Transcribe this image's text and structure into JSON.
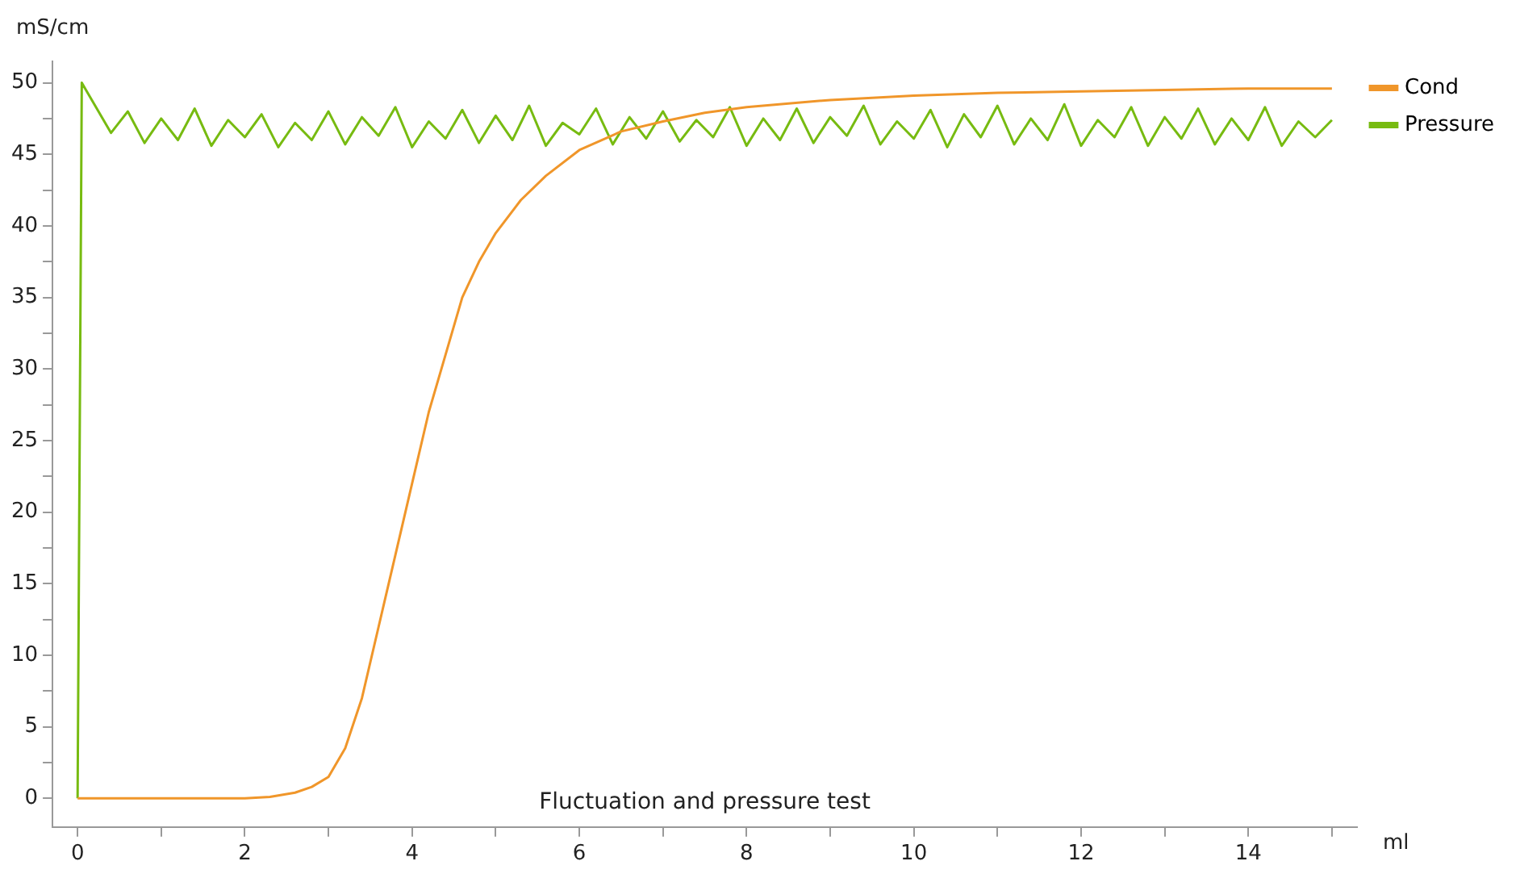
{
  "chart_data": {
    "type": "line",
    "xlabel": "ml",
    "ylabel": "mS/cm",
    "annotations": [
      "Fluctuation and pressure test"
    ],
    "xlim": [
      -0.3,
      15.3
    ],
    "ylim": [
      -2,
      51.5
    ],
    "xticks": [
      0,
      {
        "value": 1,
        "label": null
      },
      2,
      {
        "value": 3,
        "label": null
      },
      4,
      {
        "value": 5,
        "label": null
      },
      6,
      {
        "value": 7,
        "label": null
      },
      8,
      {
        "value": 9,
        "label": null
      },
      10,
      {
        "value": 11,
        "label": null
      },
      12,
      {
        "value": 13,
        "label": null
      },
      14,
      {
        "value": 15,
        "label": null
      }
    ],
    "yticks": [
      0,
      {
        "value": 2.5,
        "label": null
      },
      5,
      {
        "value": 7.5,
        "label": null
      },
      10,
      {
        "value": 12.5,
        "label": null
      },
      15,
      {
        "value": 17.5,
        "label": null
      },
      20,
      {
        "value": 22.5,
        "label": null
      },
      25,
      {
        "value": 27.5,
        "label": null
      },
      30,
      {
        "value": 32.5,
        "label": null
      },
      35,
      {
        "value": 37.5,
        "label": null
      },
      40,
      {
        "value": 42.5,
        "label": null
      },
      45,
      {
        "value": 47.5,
        "label": null
      },
      50
    ],
    "grid": false,
    "legend": "top right",
    "marker": "none",
    "line_style": "solid",
    "series": [
      {
        "name": "Cond",
        "color": "#f0962a",
        "x": [
          0,
          1,
          2,
          2.3,
          2.6,
          2.8,
          3.0,
          3.2,
          3.4,
          3.6,
          3.8,
          4.0,
          4.2,
          4.4,
          4.6,
          4.8,
          5.0,
          5.3,
          5.6,
          6.0,
          6.5,
          7.0,
          7.5,
          8.0,
          9.0,
          10.0,
          11.0,
          12.0,
          13.0,
          14.0,
          15.0
        ],
        "values": [
          0,
          0,
          0,
          0.1,
          0.4,
          0.8,
          1.5,
          3.5,
          7,
          12,
          17,
          22,
          27,
          31,
          35,
          37.5,
          39.5,
          41.8,
          43.5,
          45.3,
          46.6,
          47.3,
          47.9,
          48.3,
          48.8,
          49.1,
          49.3,
          49.4,
          49.5,
          49.6,
          49.6
        ]
      },
      {
        "name": "Pressure",
        "color": "#77bb11",
        "x": [
          0,
          0.05,
          0.1,
          0.2,
          0.4,
          0.6,
          0.8,
          1.0,
          1.2,
          1.4,
          1.6,
          1.8,
          2.0,
          2.2,
          2.4,
          2.6,
          2.8,
          3.0,
          3.2,
          3.4,
          3.6,
          3.8,
          4.0,
          4.2,
          4.4,
          4.6,
          4.8,
          5.0,
          5.2,
          5.4,
          5.6,
          5.8,
          6.0,
          6.2,
          6.4,
          6.6,
          6.8,
          7.0,
          7.2,
          7.4,
          7.6,
          7.8,
          8.0,
          8.2,
          8.4,
          8.6,
          8.8,
          9.0,
          9.2,
          9.4,
          9.6,
          9.8,
          10.0,
          10.2,
          10.4,
          10.6,
          10.8,
          11.0,
          11.2,
          11.4,
          11.6,
          11.8,
          12.0,
          12.2,
          12.4,
          12.6,
          12.8,
          13.0,
          13.2,
          13.4,
          13.6,
          13.8,
          14.0,
          14.2,
          14.4,
          14.6,
          14.8,
          15.0
        ],
        "values": [
          0,
          50,
          49.5,
          48.5,
          46.5,
          48,
          45.8,
          47.5,
          46,
          48.2,
          45.6,
          47.4,
          46.2,
          47.8,
          45.5,
          47.2,
          46,
          48,
          45.7,
          47.6,
          46.3,
          48.3,
          45.5,
          47.3,
          46.1,
          48.1,
          45.8,
          47.7,
          46,
          48.4,
          45.6,
          47.2,
          46.4,
          48.2,
          45.7,
          47.6,
          46.1,
          48,
          45.9,
          47.4,
          46.2,
          48.3,
          45.6,
          47.5,
          46,
          48.2,
          45.8,
          47.6,
          46.3,
          48.4,
          45.7,
          47.3,
          46.1,
          48.1,
          45.5,
          47.8,
          46.2,
          48.4,
          45.7,
          47.5,
          46,
          48.5,
          45.6,
          47.4,
          46.2,
          48.3,
          45.6,
          47.6,
          46.1,
          48.2,
          45.7,
          47.5,
          46,
          48.3,
          45.6,
          47.3,
          46.2,
          47.4
        ]
      }
    ]
  }
}
